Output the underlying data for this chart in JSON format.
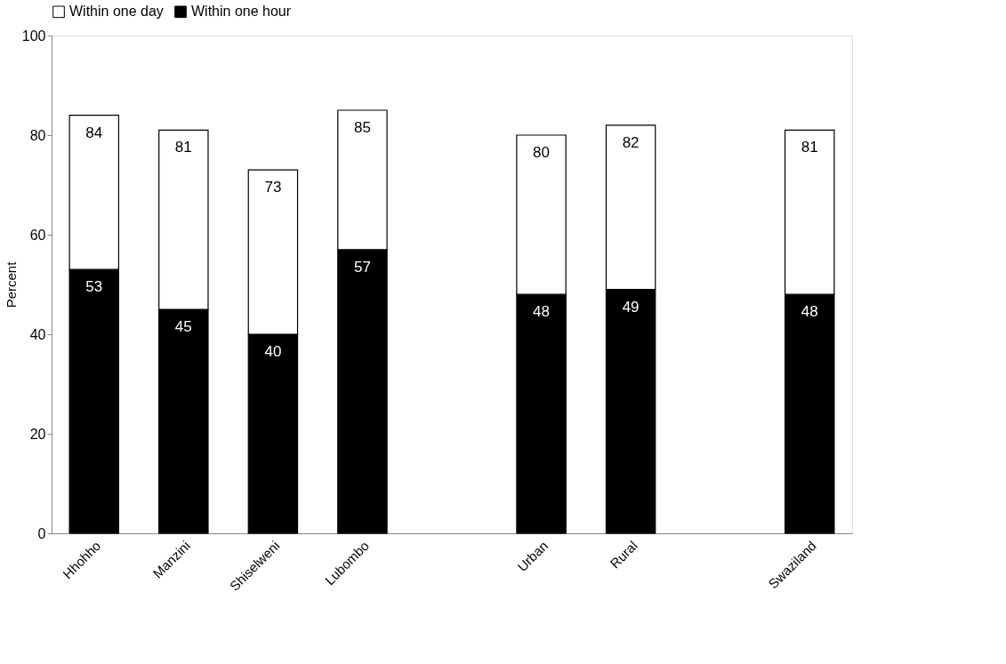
{
  "chart_data": {
    "type": "bar",
    "ylabel": "Percent",
    "stacked": true,
    "categories": [
      "Hhohho",
      "Manzini",
      "Shiselweni",
      "Lubombo",
      null,
      "Urban",
      "Rural",
      null,
      "Swaziland"
    ],
    "series": [
      {
        "name": "Within one hour",
        "color": "#000000",
        "values": [
          53,
          45,
          40,
          57,
          null,
          48,
          49,
          null,
          48
        ],
        "value_labels": [
          "53",
          "45",
          "40",
          "57",
          null,
          "48",
          "49",
          null,
          "48"
        ]
      },
      {
        "name": "Within one day",
        "color": "#ffffff",
        "values": [
          31,
          36,
          33,
          28,
          null,
          32,
          33,
          null,
          33
        ]
      }
    ],
    "totals": [
      "84",
      "81",
      "73",
      "85",
      null,
      "80",
      "82",
      null,
      "81"
    ],
    "ylim": [
      0,
      100
    ],
    "yticks": [
      0,
      20,
      40,
      60,
      80,
      100
    ],
    "legend": "top"
  }
}
